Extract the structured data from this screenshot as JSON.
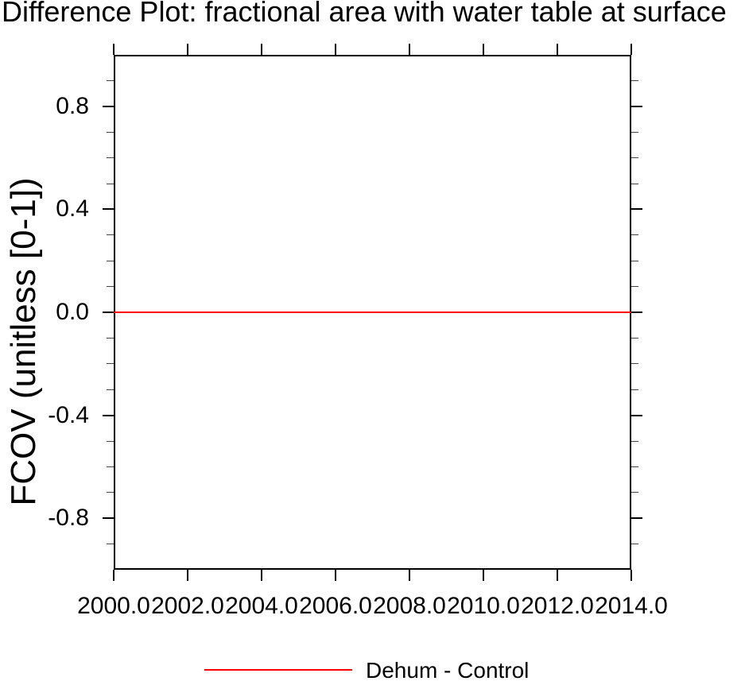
{
  "title": "Difference Plot: fractional area with water table at surface",
  "chart_data": {
    "type": "line",
    "title": "Difference Plot: fractional area with water table at surface",
    "xlabel": "",
    "ylabel": "FCOV  (unitless [0-1])",
    "xlim": [
      2000.0,
      2014.0
    ],
    "ylim": [
      -1.0,
      1.0
    ],
    "x_major_ticks": [
      2000.0,
      2002.0,
      2004.0,
      2006.0,
      2008.0,
      2010.0,
      2012.0,
      2014.0
    ],
    "x_tick_labels": [
      "2000.0",
      "2002.0",
      "2004.0",
      "2006.0",
      "2008.0",
      "2010.0",
      "2012.0",
      "2014.0"
    ],
    "y_major_ticks": [
      0.8,
      0.4,
      0.0,
      -0.4,
      -0.8
    ],
    "y_tick_labels": [
      "0.8",
      "0.4",
      "0.0",
      "-0.4",
      "-0.8"
    ],
    "y_minor_tick_interval": 0.1,
    "grid": false,
    "legend_position": "bottom-center",
    "series": [
      {
        "name": "Dehum - Control",
        "color": "#ff0000",
        "x": [
          2000.0,
          2014.0
        ],
        "y": [
          0.0,
          0.0
        ]
      }
    ]
  },
  "legend": {
    "label": "Dehum - Control",
    "line_color": "#ff0000"
  },
  "colors": {
    "background": "#ffffff",
    "axis": "#000000",
    "text": "#000000",
    "series": "#ff0000"
  }
}
